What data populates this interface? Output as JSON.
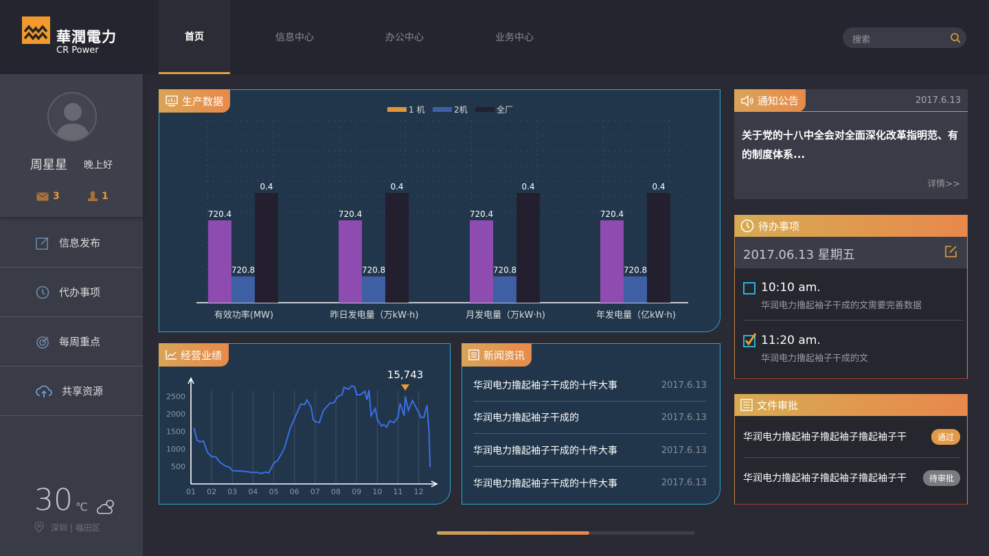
{
  "brand": {
    "name_cn": "華潤電力",
    "name_en": "CR Power"
  },
  "nav": [
    {
      "label": "首页",
      "active": true
    },
    {
      "label": "信息中心"
    },
    {
      "label": "办公中心"
    },
    {
      "label": "业务中心"
    }
  ],
  "search": {
    "placeholder": "搜索"
  },
  "user": {
    "name": "周星星",
    "greeting": "晚上好",
    "messages": "3",
    "tasks": "1"
  },
  "menu": [
    {
      "label": "信息发布",
      "icon": "edit-icon"
    },
    {
      "label": "代办事项",
      "icon": "clock-icon"
    },
    {
      "label": "每周重点",
      "icon": "target-icon"
    },
    {
      "label": "共享资源",
      "icon": "cloud-upload-icon"
    }
  ],
  "weather": {
    "temp": "30",
    "unit": "℃",
    "location": "深圳 | 福田区"
  },
  "production": {
    "title": "生产数据"
  },
  "performance": {
    "title": "经营业绩"
  },
  "news": {
    "title": "新闻资讯",
    "items": [
      {
        "title": "华润电力撸起袖子干成的十件大事",
        "date": "2017.6.13"
      },
      {
        "title": "华润电力撸起袖子干成的",
        "date": "2017.6.13"
      },
      {
        "title": "华润电力撸起袖子干成的十件大事",
        "date": "2017.6.13"
      },
      {
        "title": "华润电力撸起袖子干成的十件大事",
        "date": "2017.6.13"
      }
    ]
  },
  "notice": {
    "title": "通知公告",
    "date": "2017.6.13",
    "text": "关于党的十八中全会对全面深化改革指明范、有的制度体系...",
    "more": "详情>>"
  },
  "todo": {
    "title": "待办事项",
    "date": "2017.06.13 星期五",
    "items": [
      {
        "time": "10:10 am.",
        "text": "华润电力撸起袖子干成的文需要完善数据",
        "done": false
      },
      {
        "time": "11:20 am.",
        "text": "华润电力撸起袖子干成的文",
        "done": true
      }
    ]
  },
  "files": {
    "title": "文件审批",
    "items": [
      {
        "text": "华润电力撸起袖子撸起袖子撸起袖子干",
        "status": "通过",
        "color": "#e39a48"
      },
      {
        "text": "华润电力撸起袖子撸起袖子撸起袖子干",
        "status": "待审批",
        "color": "#7a7b80"
      }
    ]
  },
  "scroll": {
    "progress": 0.59
  },
  "chart_data": [
    {
      "type": "bar",
      "title": "生产数据",
      "categories": [
        "有效功率(MW)",
        "昨日发电量（万kW·h)",
        "月发电量（万kW·h)",
        "年发电量（亿kW·h)"
      ],
      "series": [
        {
          "name": "1 机",
          "color": "#8e4bb0",
          "values": [
            720.4,
            720.4,
            720.4,
            720.4
          ],
          "levels": [
            0.75,
            0.75,
            0.75,
            0.75
          ]
        },
        {
          "name": "2机",
          "color": "#3e5fa3",
          "values": [
            720.8,
            720.8,
            720.8,
            720.8
          ],
          "levels": [
            0.24,
            0.24,
            0.24,
            0.24
          ]
        },
        {
          "name": "全厂",
          "color": "#231f2e",
          "values": [
            0.4,
            0.4,
            0.4,
            0.4
          ],
          "levels": [
            1,
            1,
            1,
            1
          ]
        }
      ],
      "legend_colors": [
        "#e0953a",
        "#3e5fa3",
        "#231f2e"
      ],
      "grid": true
    },
    {
      "type": "line",
      "title": "经营业绩",
      "xticks": [
        "01",
        "02",
        "03",
        "04",
        "05",
        "06",
        "07",
        "08",
        "09",
        "10",
        "11",
        "12"
      ],
      "yticks": [
        500,
        1000,
        1500,
        2000,
        2500
      ],
      "ylim": [
        0,
        2900
      ],
      "xlim": [
        1,
        12.9
      ],
      "color": "#3b6fe8",
      "annotation": {
        "x": 11.35,
        "label": "15,743"
      },
      "points": [
        [
          1.15,
          1600
        ],
        [
          1.3,
          1250
        ],
        [
          1.45,
          1200
        ],
        [
          1.6,
          1230
        ],
        [
          1.8,
          900
        ],
        [
          2.0,
          780
        ],
        [
          2.2,
          770
        ],
        [
          2.4,
          620
        ],
        [
          2.7,
          500
        ],
        [
          2.85,
          480
        ],
        [
          3.0,
          380
        ],
        [
          3.3,
          370
        ],
        [
          3.6,
          360
        ],
        [
          3.9,
          330
        ],
        [
          4.2,
          330
        ],
        [
          4.4,
          300
        ],
        [
          4.6,
          340
        ],
        [
          4.75,
          310
        ],
        [
          5.0,
          590
        ],
        [
          5.2,
          680
        ],
        [
          5.5,
          1000
        ],
        [
          5.8,
          1600
        ],
        [
          6.1,
          2000
        ],
        [
          6.3,
          2280
        ],
        [
          6.5,
          2270
        ],
        [
          6.6,
          2400
        ],
        [
          6.8,
          2200
        ],
        [
          6.9,
          1850
        ],
        [
          7.0,
          1780
        ],
        [
          7.2,
          1750
        ],
        [
          7.4,
          2100
        ],
        [
          7.7,
          2300
        ],
        [
          7.9,
          2320
        ],
        [
          8.1,
          2500
        ],
        [
          8.3,
          2550
        ],
        [
          8.4,
          2760
        ],
        [
          8.6,
          2700
        ],
        [
          8.75,
          2800
        ],
        [
          8.9,
          2780
        ],
        [
          9.0,
          2550
        ],
        [
          9.2,
          2550
        ],
        [
          9.4,
          2650
        ],
        [
          9.5,
          2400
        ],
        [
          9.6,
          2680
        ],
        [
          9.7,
          1950
        ],
        [
          9.9,
          2150
        ],
        [
          10.0,
          1850
        ],
        [
          10.2,
          1650
        ],
        [
          10.3,
          1700
        ],
        [
          10.45,
          1620
        ],
        [
          10.6,
          1800
        ],
        [
          10.8,
          1750
        ],
        [
          11.0,
          1900
        ],
        [
          11.1,
          2300
        ],
        [
          11.3,
          1950
        ],
        [
          11.35,
          2500
        ],
        [
          11.5,
          2100
        ],
        [
          11.7,
          2380
        ],
        [
          11.9,
          2150
        ],
        [
          12.0,
          2050
        ],
        [
          12.1,
          1900
        ],
        [
          12.25,
          1900
        ],
        [
          12.4,
          2250
        ],
        [
          12.5,
          1500
        ],
        [
          12.55,
          480
        ]
      ]
    }
  ]
}
